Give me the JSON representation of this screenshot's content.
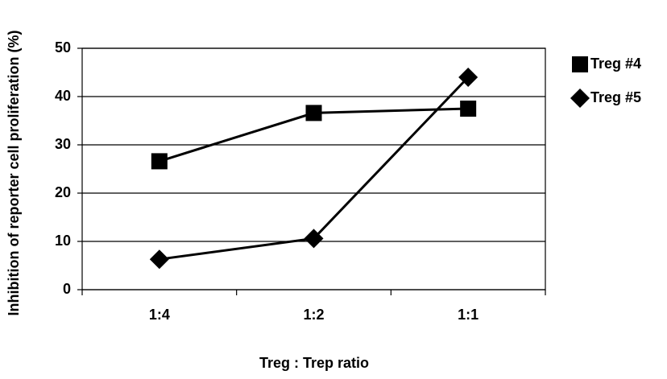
{
  "chart_data": {
    "type": "line",
    "categories": [
      "1:4",
      "1:2",
      "1:1"
    ],
    "series": [
      {
        "name": "Treg #4",
        "color": "#000000",
        "marker": "square",
        "values": [
          26.6,
          36.6,
          37.5
        ]
      },
      {
        "name": "Treg #5",
        "color": "#000000",
        "marker": "diamond",
        "values": [
          6.3,
          10.6,
          44.0
        ]
      }
    ],
    "x_label": "Treg : Trep ratio",
    "y_label": "Inhibition of reporter cell proliferation (%)",
    "ylim": [
      0,
      50
    ],
    "yticks": [
      0,
      10,
      20,
      30,
      40,
      50
    ],
    "grid": true,
    "legend": "right"
  }
}
